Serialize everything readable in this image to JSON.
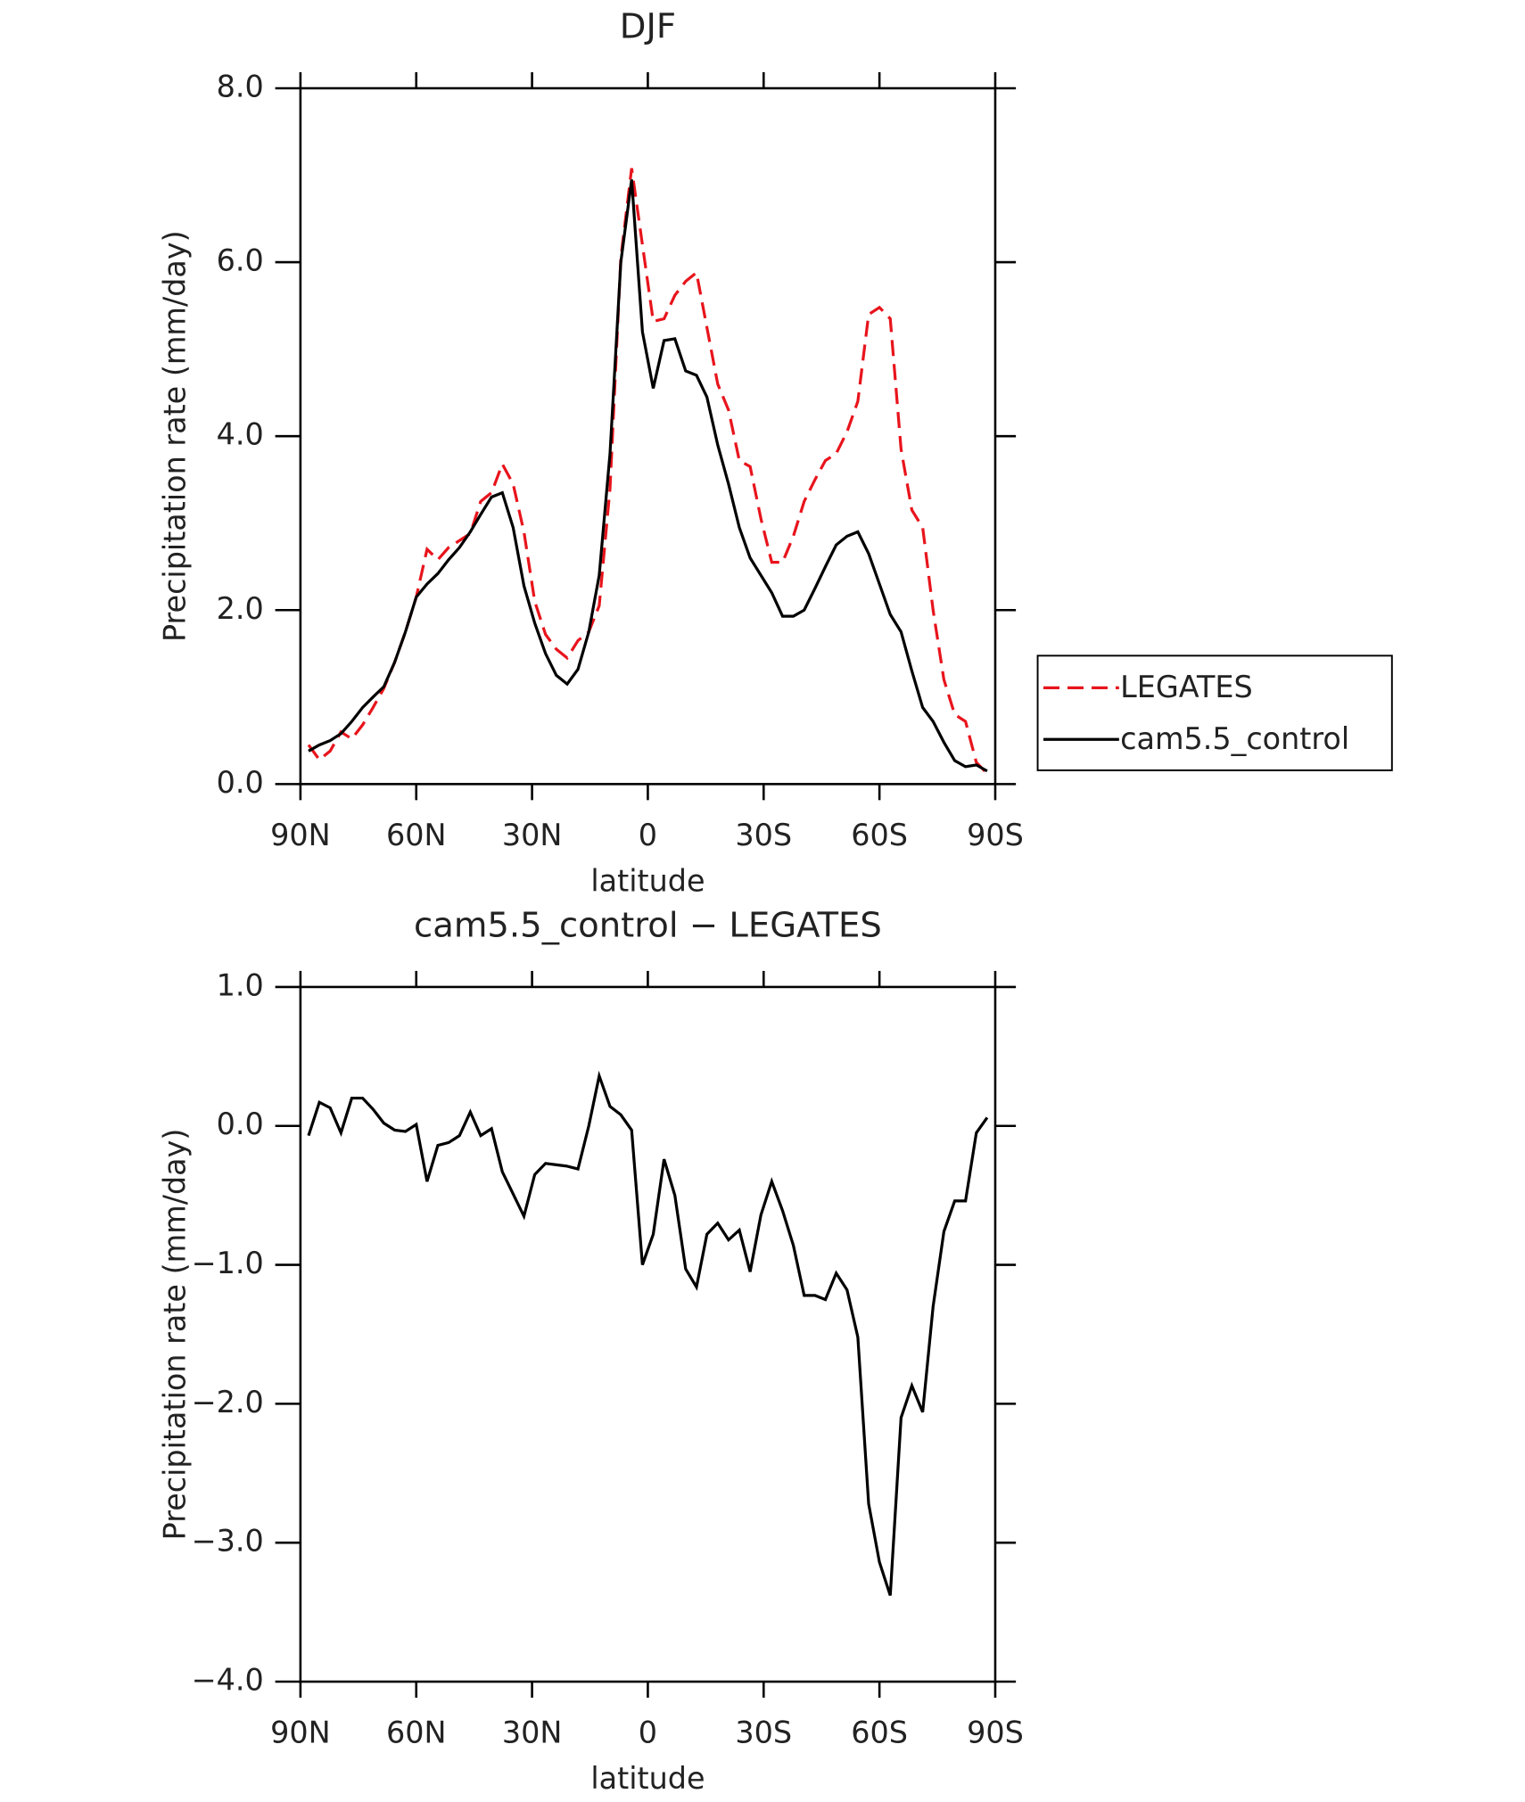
{
  "chart_data": [
    {
      "type": "line",
      "title": "DJF",
      "xlabel": "latitude",
      "ylabel": "Precipitation rate (mm/day)",
      "x": [
        87.9,
        85.1,
        82.3,
        79.5,
        76.7,
        73.9,
        71.2,
        68.4,
        65.6,
        62.8,
        60.0,
        57.2,
        54.4,
        51.6,
        48.8,
        46.0,
        43.3,
        40.5,
        37.7,
        34.9,
        32.1,
        29.3,
        26.5,
        23.7,
        20.9,
        18.1,
        15.3,
        12.6,
        9.8,
        7.0,
        4.2,
        1.4,
        -1.4,
        -4.2,
        -7.0,
        -9.8,
        -12.6,
        -15.3,
        -18.1,
        -20.9,
        -23.7,
        -26.5,
        -29.3,
        -32.1,
        -34.9,
        -37.7,
        -40.5,
        -43.3,
        -46.0,
        -48.8,
        -51.6,
        -54.4,
        -57.2,
        -60.0,
        -62.8,
        -65.6,
        -68.4,
        -71.2,
        -73.9,
        -76.7,
        -79.5,
        -82.3,
        -85.1,
        -87.9
      ],
      "series": [
        {
          "name": "LEGATES",
          "color": "#e8141c",
          "dash": "dashed",
          "values": [
            0.45,
            0.28,
            0.38,
            0.6,
            0.52,
            0.68,
            0.88,
            1.1,
            1.4,
            1.75,
            2.15,
            2.7,
            2.58,
            2.72,
            2.8,
            2.88,
            3.25,
            3.35,
            3.68,
            3.45,
            2.9,
            2.1,
            1.72,
            1.55,
            1.45,
            1.65,
            1.75,
            2.05,
            3.4,
            6.05,
            7.08,
            6.2,
            5.32,
            5.35,
            5.62,
            5.78,
            5.88,
            5.25,
            4.6,
            4.3,
            3.72,
            3.65,
            3.05,
            2.55,
            2.55,
            2.85,
            3.25,
            3.5,
            3.72,
            3.8,
            4.05,
            4.4,
            5.4,
            5.48,
            5.35,
            3.85,
            3.15,
            2.95,
            2.0,
            1.2,
            0.8,
            0.72,
            0.25,
            0.12
          ]
        },
        {
          "name": "cam5.5_control",
          "color": "#000000",
          "dash": "solid",
          "values": [
            0.38,
            0.45,
            0.5,
            0.58,
            0.72,
            0.88,
            1.0,
            1.12,
            1.4,
            1.75,
            2.15,
            2.3,
            2.42,
            2.58,
            2.72,
            2.9,
            3.1,
            3.3,
            3.35,
            2.95,
            2.28,
            1.85,
            1.5,
            1.25,
            1.15,
            1.32,
            1.75,
            2.4,
            3.8,
            6.0,
            6.95,
            5.2,
            4.55,
            5.1,
            5.12,
            4.75,
            4.7,
            4.45,
            3.9,
            3.45,
            2.95,
            2.6,
            2.4,
            2.2,
            1.93,
            1.93,
            2.0,
            2.25,
            2.5,
            2.75,
            2.85,
            2.9,
            2.65,
            2.3,
            1.95,
            1.75,
            1.3,
            0.88,
            0.72,
            0.48,
            0.27,
            0.2,
            0.22,
            0.15
          ]
        }
      ],
      "legend": "right",
      "xlim": [
        90,
        -90
      ],
      "xticks": [
        {
          "value": 90,
          "label": "90N"
        },
        {
          "value": 60,
          "label": "60N"
        },
        {
          "value": 30,
          "label": "30N"
        },
        0,
        {
          "value": -30,
          "label": "30S"
        },
        {
          "value": -60,
          "label": "60S"
        },
        {
          "value": -90,
          "label": "90S"
        }
      ],
      "ylim": [
        0,
        8
      ],
      "yticks": [
        {
          "value": 0,
          "label": "0.0"
        },
        {
          "value": 2,
          "label": "2.0"
        },
        {
          "value": 4,
          "label": "4.0"
        },
        {
          "value": 6,
          "label": "6.0"
        },
        {
          "value": 8,
          "label": "8.0"
        }
      ]
    },
    {
      "type": "line",
      "title": "cam5.5_control − LEGATES",
      "xlabel": "latitude",
      "ylabel": "Precipitation rate (mm/day)",
      "x": [
        87.9,
        85.1,
        82.3,
        79.5,
        76.7,
        73.9,
        71.2,
        68.4,
        65.6,
        62.8,
        60.0,
        57.2,
        54.4,
        51.6,
        48.8,
        46.0,
        43.3,
        40.5,
        37.7,
        34.9,
        32.1,
        29.3,
        26.5,
        23.7,
        20.9,
        18.1,
        15.3,
        12.6,
        9.8,
        7.0,
        4.2,
        1.4,
        -1.4,
        -4.2,
        -7.0,
        -9.8,
        -12.6,
        -15.3,
        -18.1,
        -20.9,
        -23.7,
        -26.5,
        -29.3,
        -32.1,
        -34.9,
        -37.7,
        -40.5,
        -43.3,
        -46.0,
        -48.8,
        -51.6,
        -54.4,
        -57.2,
        -60.0,
        -62.8,
        -65.6,
        -68.4,
        -71.2,
        -73.9,
        -76.7,
        -79.5,
        -82.3,
        -85.1,
        -87.9
      ],
      "series": [
        {
          "color": "#000000",
          "dash": "solid",
          "values": [
            -0.07,
            0.17,
            0.13,
            -0.05,
            0.2,
            0.2,
            0.12,
            0.02,
            -0.03,
            -0.04,
            0.01,
            -0.4,
            -0.14,
            -0.12,
            -0.07,
            0.1,
            -0.07,
            -0.02,
            -0.33,
            -0.49,
            -0.65,
            -0.35,
            -0.27,
            -0.28,
            -0.29,
            -0.31,
            0,
            0.36,
            0.14,
            0.08,
            -0.03,
            -1.0,
            -0.78,
            -0.24,
            -0.5,
            -1.03,
            -1.16,
            -0.78,
            -0.7,
            -0.82,
            -0.75,
            -1.05,
            -0.64,
            -0.4,
            -0.61,
            -0.86,
            -1.22,
            -1.22,
            -1.25,
            -1.06,
            -1.18,
            -1.52,
            -2.72,
            -3.14,
            -3.38,
            -2.1,
            -1.87,
            -2.06,
            -1.3,
            -0.76,
            -0.54,
            -0.54,
            -0.05,
            0.06
          ]
        }
      ],
      "xlim": [
        90,
        -90
      ],
      "xticks": [
        {
          "value": 90,
          "label": "90N"
        },
        {
          "value": 60,
          "label": "60N"
        },
        {
          "value": 30,
          "label": "30N"
        },
        0,
        {
          "value": -30,
          "label": "30S"
        },
        {
          "value": -60,
          "label": "60S"
        },
        {
          "value": -90,
          "label": "90S"
        }
      ],
      "ylim": [
        -4,
        1
      ],
      "yticks": [
        {
          "value": -4,
          "label": "−4.0"
        },
        {
          "value": -3,
          "label": "−3.0"
        },
        {
          "value": -2,
          "label": "−2.0"
        },
        {
          "value": -1,
          "label": "−1.0"
        },
        {
          "value": 0,
          "label": "0.0"
        },
        {
          "value": 1,
          "label": "1.0"
        }
      ]
    }
  ]
}
